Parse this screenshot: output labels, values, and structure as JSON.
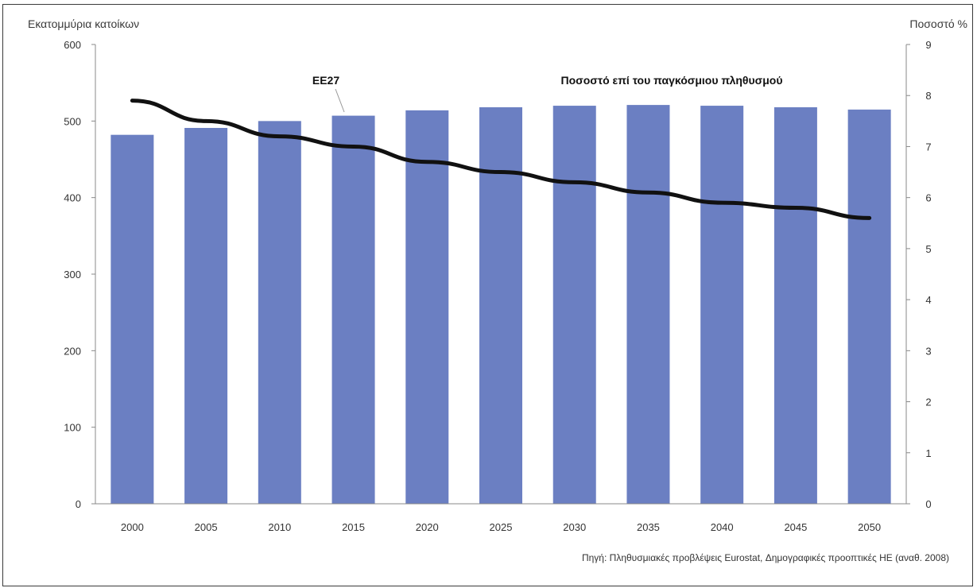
{
  "chart_data": {
    "type": "bar+line",
    "categories": [
      "2000",
      "2005",
      "2010",
      "2015",
      "2020",
      "2025",
      "2030",
      "2035",
      "2040",
      "2045",
      "2050"
    ],
    "series": [
      {
        "name": "ΕΕ27",
        "type": "bar",
        "axis": "left",
        "color": "#6b7fc2",
        "values": [
          482,
          491,
          500,
          507,
          514,
          518,
          520,
          521,
          520,
          518,
          515
        ]
      },
      {
        "name": "Ποσοστό επί του παγκόσμιου πληθυσμού",
        "type": "line",
        "axis": "right",
        "color": "#111111",
        "values": [
          7.9,
          7.5,
          7.2,
          7.0,
          6.7,
          6.5,
          6.3,
          6.1,
          5.9,
          5.8,
          5.6
        ]
      }
    ],
    "ylabel": "Εκατομμύρια κατοίκων",
    "ylabel_right": "Ποσοστό %",
    "ylim": [
      0,
      600
    ],
    "ylim_right": [
      0,
      9
    ],
    "yticks": [
      "0",
      "100",
      "200",
      "300",
      "400",
      "500",
      "600"
    ],
    "yticks_right": [
      "0",
      "1",
      "2",
      "3",
      "4",
      "5",
      "6",
      "7",
      "8",
      "9"
    ],
    "grid": false,
    "annotations": [
      {
        "text": "ΕΕ27",
        "target": "bar"
      },
      {
        "text": "Ποσοστό επί του παγκόσμιου πληθυσμού",
        "target": "line"
      }
    ],
    "source": "Πηγή: Πληθυσμιακές προβλέψεις Eurostat, Δημογραφικές προοπτικές ΗΕ (αναθ. 2008)"
  }
}
